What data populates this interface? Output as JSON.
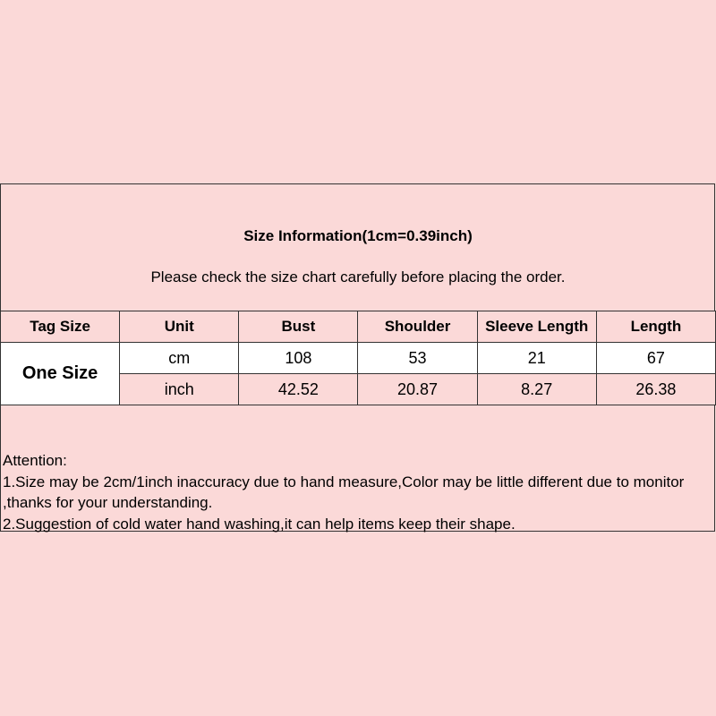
{
  "title": "Size Information(1cm=0.39inch)",
  "subtitle": "Please check the size chart carefully before placing the order.",
  "table": {
    "headers": [
      "Tag Size",
      "Unit",
      "Bust",
      "Shoulder",
      "Sleeve Length",
      "Length"
    ],
    "tag_size": "One Size",
    "rows": [
      {
        "unit": "cm",
        "values": [
          "108",
          "53",
          "21",
          "67"
        ]
      },
      {
        "unit": "inch",
        "values": [
          "42.52",
          "20.87",
          "8.27",
          "26.38"
        ]
      }
    ]
  },
  "notes": {
    "heading": "Attention:",
    "line1": "1.Size may be 2cm/1inch inaccuracy due to hand measure,Color may be little different due to monitor ,thanks for your understanding.",
    "line2": "2.Suggestion of cold water hand washing,it can help items keep their shape."
  }
}
